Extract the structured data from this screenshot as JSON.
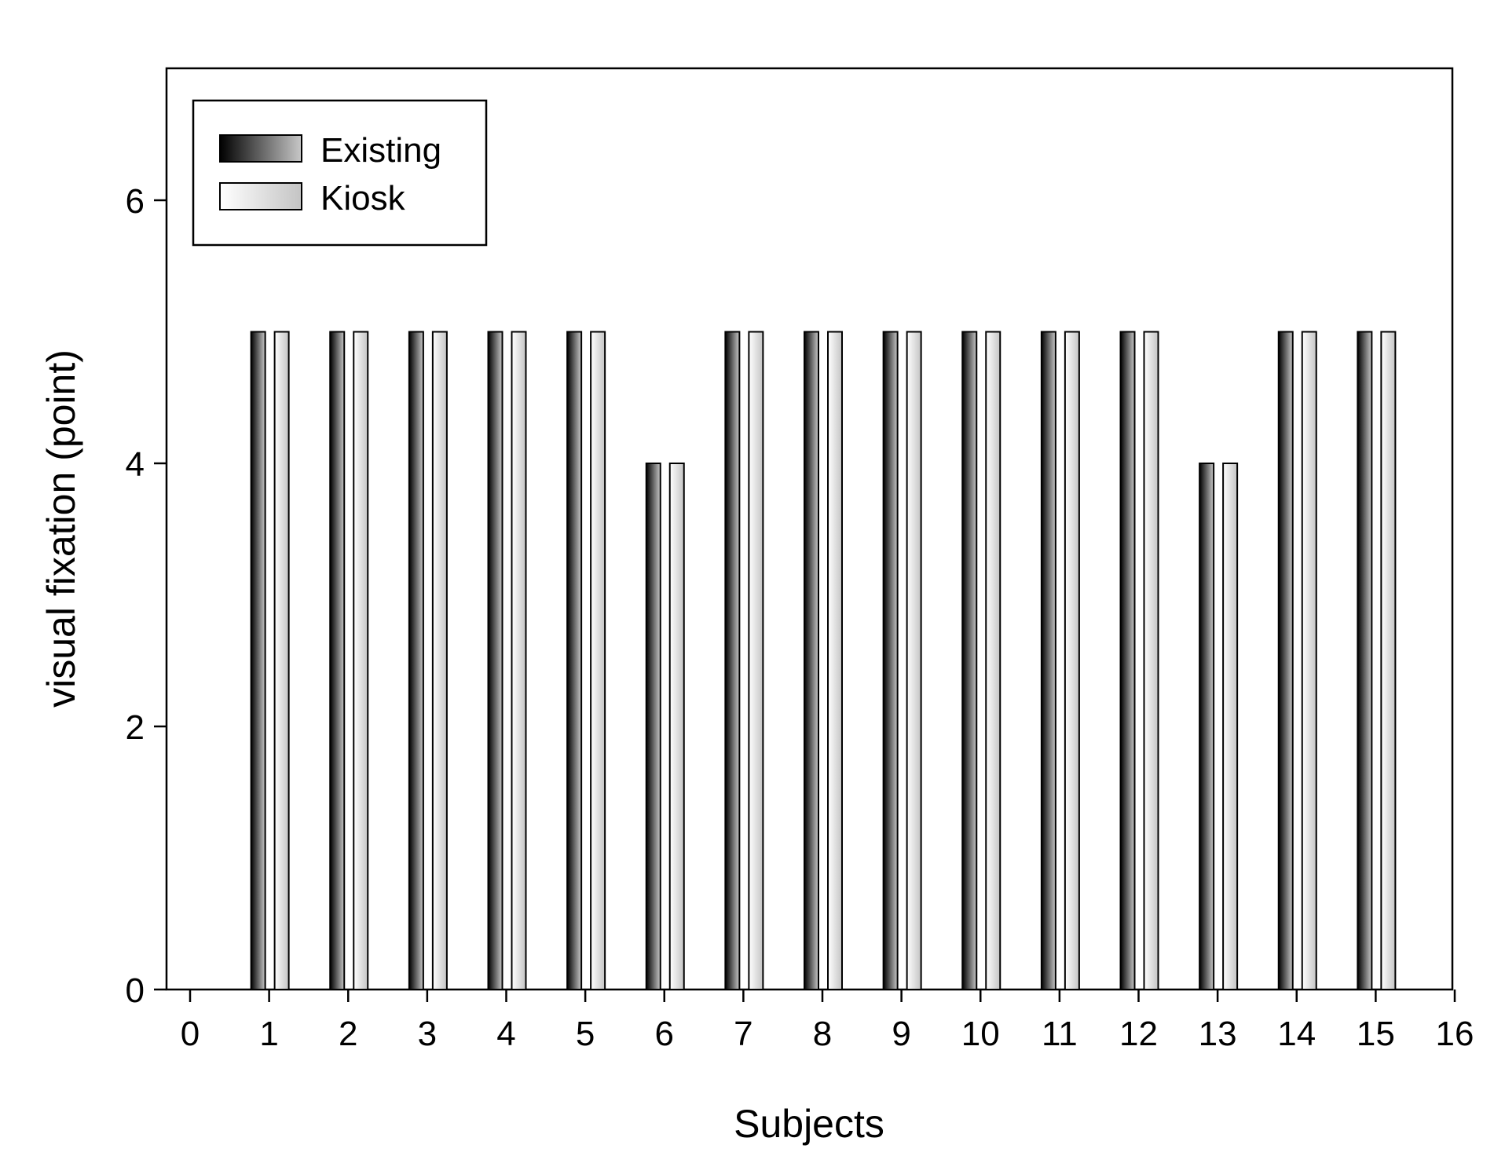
{
  "chart_data": {
    "type": "bar",
    "xlabel": "Subjects",
    "ylabel": "visual fixation (point)",
    "x": [
      1,
      2,
      3,
      4,
      5,
      6,
      7,
      8,
      9,
      10,
      11,
      12,
      13,
      14,
      15
    ],
    "series": [
      {
        "name": "Existing",
        "values": [
          5,
          5,
          5,
          5,
          5,
          4,
          5,
          5,
          5,
          5,
          5,
          5,
          4,
          5,
          5
        ]
      },
      {
        "name": "Kiosk",
        "values": [
          5,
          5,
          5,
          5,
          5,
          4,
          5,
          5,
          5,
          5,
          5,
          5,
          4,
          5,
          5
        ]
      }
    ],
    "xlim": [
      0,
      16
    ],
    "ylim": [
      0,
      7
    ],
    "xticks": [
      "0",
      "1",
      "2",
      "3",
      "4",
      "5",
      "6",
      "7",
      "8",
      "9",
      "10",
      "11",
      "12",
      "13",
      "14",
      "15",
      "16"
    ],
    "yticks": [
      "0",
      "2",
      "4",
      "6"
    ],
    "grid": false,
    "legend_position": "top-left"
  }
}
